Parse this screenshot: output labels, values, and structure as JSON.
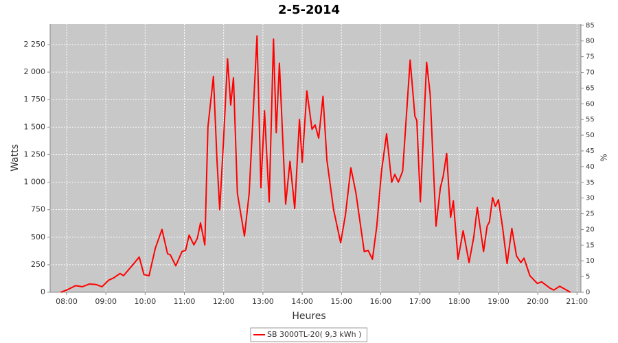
{
  "chart_data": {
    "type": "line",
    "title": "2-5-2014",
    "xlabel": "Heures",
    "ylabel": "Watts",
    "y2label": "%",
    "x": [
      7.85,
      8.0,
      8.23,
      8.4,
      8.58,
      8.75,
      8.9,
      9.07,
      9.2,
      9.36,
      9.45,
      9.71,
      9.85,
      9.97,
      10.1,
      10.26,
      10.43,
      10.57,
      10.64,
      10.78,
      10.94,
      11.03,
      11.12,
      11.24,
      11.33,
      11.41,
      11.52,
      11.6,
      11.74,
      11.83,
      11.9,
      12.0,
      12.1,
      12.18,
      12.25,
      12.35,
      12.53,
      12.65,
      12.85,
      12.95,
      13.04,
      13.16,
      13.27,
      13.34,
      13.42,
      13.58,
      13.69,
      13.81,
      13.93,
      14.0,
      14.12,
      14.25,
      14.33,
      14.42,
      14.53,
      14.63,
      14.8,
      14.98,
      15.1,
      15.24,
      15.37,
      15.58,
      15.68,
      15.79,
      15.9,
      16.02,
      16.15,
      16.28,
      16.36,
      16.45,
      16.56,
      16.75,
      16.87,
      16.92,
      17.01,
      17.17,
      17.26,
      17.41,
      17.52,
      17.59,
      17.68,
      17.78,
      17.85,
      17.97,
      18.1,
      18.25,
      18.37,
      18.46,
      18.62,
      18.71,
      18.77,
      18.85,
      18.92,
      19.0,
      19.1,
      19.22,
      19.34,
      19.46,
      19.57,
      19.65,
      19.8,
      19.99,
      20.1,
      20.3,
      20.41,
      20.56,
      20.83
    ],
    "series": [
      {
        "name": "SB 3000TL-20( 9,3 kWh )",
        "color": "#ff0000",
        "values": [
          0,
          20,
          60,
          50,
          75,
          70,
          50,
          110,
          130,
          170,
          150,
          260,
          320,
          160,
          150,
          400,
          570,
          350,
          340,
          240,
          370,
          380,
          520,
          430,
          490,
          630,
          430,
          1500,
          1960,
          1200,
          750,
          1400,
          2120,
          1700,
          1950,
          900,
          510,
          900,
          2330,
          950,
          1650,
          820,
          2300,
          1450,
          2080,
          800,
          1190,
          760,
          1570,
          1180,
          1830,
          1480,
          1520,
          1400,
          1780,
          1200,
          750,
          450,
          700,
          1130,
          900,
          370,
          380,
          300,
          600,
          1100,
          1440,
          1000,
          1070,
          1000,
          1100,
          2110,
          1600,
          1560,
          820,
          2090,
          1800,
          600,
          950,
          1050,
          1260,
          680,
          830,
          300,
          560,
          270,
          500,
          770,
          370,
          600,
          640,
          860,
          780,
          840,
          600,
          260,
          580,
          330,
          270,
          310,
          150,
          80,
          95,
          40,
          20,
          55,
          0
        ]
      }
    ],
    "xlim": [
      7.58,
      21.1
    ],
    "ylim": [
      0,
      2437
    ],
    "y2lim": [
      0,
      85.4
    ],
    "xticks": [
      {
        "value": 8,
        "label": "08:00"
      },
      {
        "value": 9,
        "label": "09:00"
      },
      {
        "value": 10,
        "label": "10:00"
      },
      {
        "value": 11,
        "label": "11:00"
      },
      {
        "value": 12,
        "label": "12:00"
      },
      {
        "value": 13,
        "label": "13:00"
      },
      {
        "value": 14,
        "label": "14:00"
      },
      {
        "value": 15,
        "label": "15:00"
      },
      {
        "value": 16,
        "label": "16:00"
      },
      {
        "value": 17,
        "label": "17:00"
      },
      {
        "value": 18,
        "label": "18:00"
      },
      {
        "value": 19,
        "label": "19:00"
      },
      {
        "value": 20,
        "label": "20:00"
      },
      {
        "value": 21,
        "label": "21:00"
      }
    ],
    "yticks": [
      0,
      250,
      500,
      750,
      {
        "value": 1000,
        "label": "1 000"
      },
      {
        "value": 1250,
        "label": "1 250"
      },
      {
        "value": 1500,
        "label": "1 500"
      },
      {
        "value": 1750,
        "label": "1 750"
      },
      {
        "value": 2000,
        "label": "2 000"
      },
      {
        "value": 2250,
        "label": "2 250"
      }
    ],
    "y2ticks": [
      0,
      5,
      10,
      15,
      20,
      25,
      30,
      35,
      40,
      45,
      50,
      55,
      60,
      65,
      70,
      75,
      80,
      85
    ],
    "grid": true,
    "background": "#c8c8c8",
    "legend": "bottom"
  }
}
